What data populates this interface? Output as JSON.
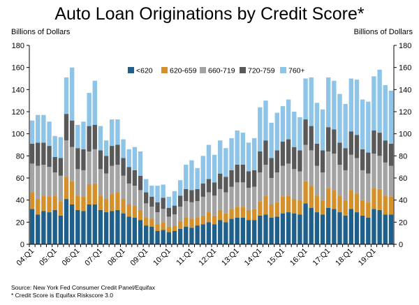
{
  "chart_data": {
    "type": "bar",
    "stacked": true,
    "title": "Auto Loan Originations by Credit Score*",
    "ylabel_left": "Billions of Dollars",
    "ylabel_right": "Billions of Dollars",
    "ylim": [
      0,
      180
    ],
    "yticks": [
      0,
      20,
      40,
      60,
      80,
      100,
      120,
      140,
      160,
      180
    ],
    "grid": false,
    "legend_position": "top-right",
    "tick_labels": [
      "04:Q1",
      "05:Q1",
      "06:Q1",
      "07:Q1",
      "08:Q1",
      "09:Q1",
      "10:Q1",
      "11:Q1",
      "12:Q1",
      "13:Q1",
      "14:Q1",
      "15:Q1",
      "16:Q1",
      "17:Q1",
      "18:Q1",
      "19:Q1"
    ],
    "tick_label_every": 4,
    "series": [
      {
        "name": "<620",
        "color": "#1f5f8b",
        "values": [
          32,
          27,
          30,
          29,
          31,
          26,
          41,
          36,
          31,
          30,
          36,
          36,
          31,
          29,
          30,
          31,
          28,
          25,
          24,
          22,
          17,
          16,
          12,
          13,
          11,
          12,
          14,
          16,
          15,
          17,
          18,
          20,
          18,
          22,
          20,
          23,
          24,
          24,
          22,
          22,
          26,
          27,
          24,
          25,
          28,
          29,
          28,
          27,
          37,
          33,
          29,
          27,
          33,
          32,
          29,
          26,
          32,
          29,
          26,
          24,
          32,
          31,
          27,
          27
        ]
      },
      {
        "name": "620-659",
        "color": "#d4902a",
        "values": [
          15,
          14,
          14,
          14,
          13,
          13,
          20,
          21,
          13,
          13,
          18,
          19,
          13,
          12,
          16,
          16,
          13,
          11,
          11,
          9,
          7,
          7,
          6,
          7,
          5,
          5,
          7,
          8,
          8,
          7,
          8,
          9,
          8,
          9,
          8,
          9,
          10,
          10,
          9,
          10,
          13,
          17,
          12,
          13,
          15,
          15,
          13,
          13,
          20,
          20,
          15,
          13,
          18,
          17,
          15,
          14,
          17,
          17,
          14,
          14,
          19,
          19,
          17,
          16
        ]
      },
      {
        "name": "660-719",
        "color": "#a3a3a3",
        "values": [
          26,
          30,
          28,
          27,
          21,
          23,
          33,
          31,
          24,
          24,
          30,
          31,
          24,
          23,
          25,
          25,
          21,
          19,
          18,
          18,
          13,
          11,
          11,
          12,
          9,
          10,
          13,
          15,
          15,
          15,
          17,
          18,
          18,
          19,
          19,
          20,
          22,
          22,
          20,
          20,
          26,
          28,
          24,
          27,
          28,
          29,
          27,
          26,
          33,
          32,
          27,
          25,
          33,
          33,
          28,
          27,
          32,
          32,
          27,
          26,
          31,
          30,
          30,
          28
        ]
      },
      {
        "name": "720-759",
        "color": "#595959",
        "values": [
          18,
          21,
          20,
          19,
          14,
          16,
          24,
          24,
          19,
          19,
          23,
          22,
          17,
          16,
          18,
          18,
          16,
          15,
          14,
          13,
          10,
          9,
          9,
          10,
          8,
          8,
          10,
          11,
          11,
          11,
          12,
          12,
          12,
          14,
          14,
          15,
          16,
          16,
          15,
          15,
          19,
          22,
          18,
          20,
          22,
          22,
          20,
          19,
          23,
          22,
          20,
          20,
          22,
          22,
          20,
          20,
          21,
          21,
          19,
          19,
          21,
          21,
          20,
          20
        ]
      },
      {
        "name": "760+",
        "color": "#8dc4e8",
        "values": [
          21,
          25,
          25,
          22,
          19,
          19,
          33,
          48,
          21,
          25,
          30,
          40,
          22,
          14,
          24,
          23,
          17,
          16,
          21,
          22,
          12,
          10,
          15,
          12,
          10,
          13,
          14,
          22,
          27,
          19,
          25,
          31,
          25,
          30,
          26,
          29,
          31,
          29,
          26,
          29,
          40,
          36,
          32,
          34,
          32,
          36,
          32,
          30,
          37,
          44,
          37,
          37,
          45,
          44,
          44,
          40,
          48,
          50,
          45,
          46,
          49,
          57,
          50,
          48
        ]
      }
    ]
  },
  "legend": [
    "<620",
    "620-659",
    "660-719",
    "720-759",
    "760+"
  ],
  "footer": {
    "source": "Source: New York Fed Consumer Credit Panel/Equifax",
    "note": "* Credit Score is Equifax Riskscore 3.0"
  }
}
